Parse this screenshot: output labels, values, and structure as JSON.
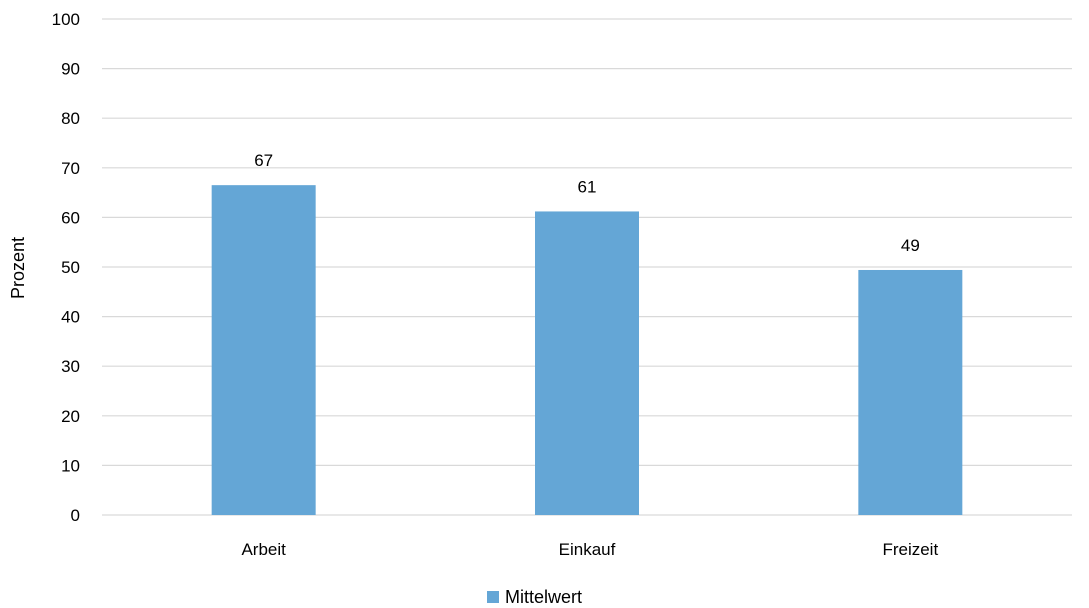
{
  "chart_data": {
    "type": "bar",
    "title": "",
    "xlabel": "",
    "ylabel": "Prozent",
    "categories": [
      "Arbeit",
      "Einkauf",
      "Freizeit"
    ],
    "series": [
      {
        "name": "Mittelwert",
        "values": [
          66.5,
          61.2,
          49.4
        ],
        "labels": [
          "67",
          "61",
          "49"
        ],
        "color": "#64a6d6"
      }
    ],
    "ylim": [
      0,
      100
    ],
    "yticks": [
      0,
      10,
      20,
      30,
      40,
      50,
      60,
      70,
      80,
      90,
      100
    ],
    "grid": true,
    "legend_position": "bottom"
  }
}
